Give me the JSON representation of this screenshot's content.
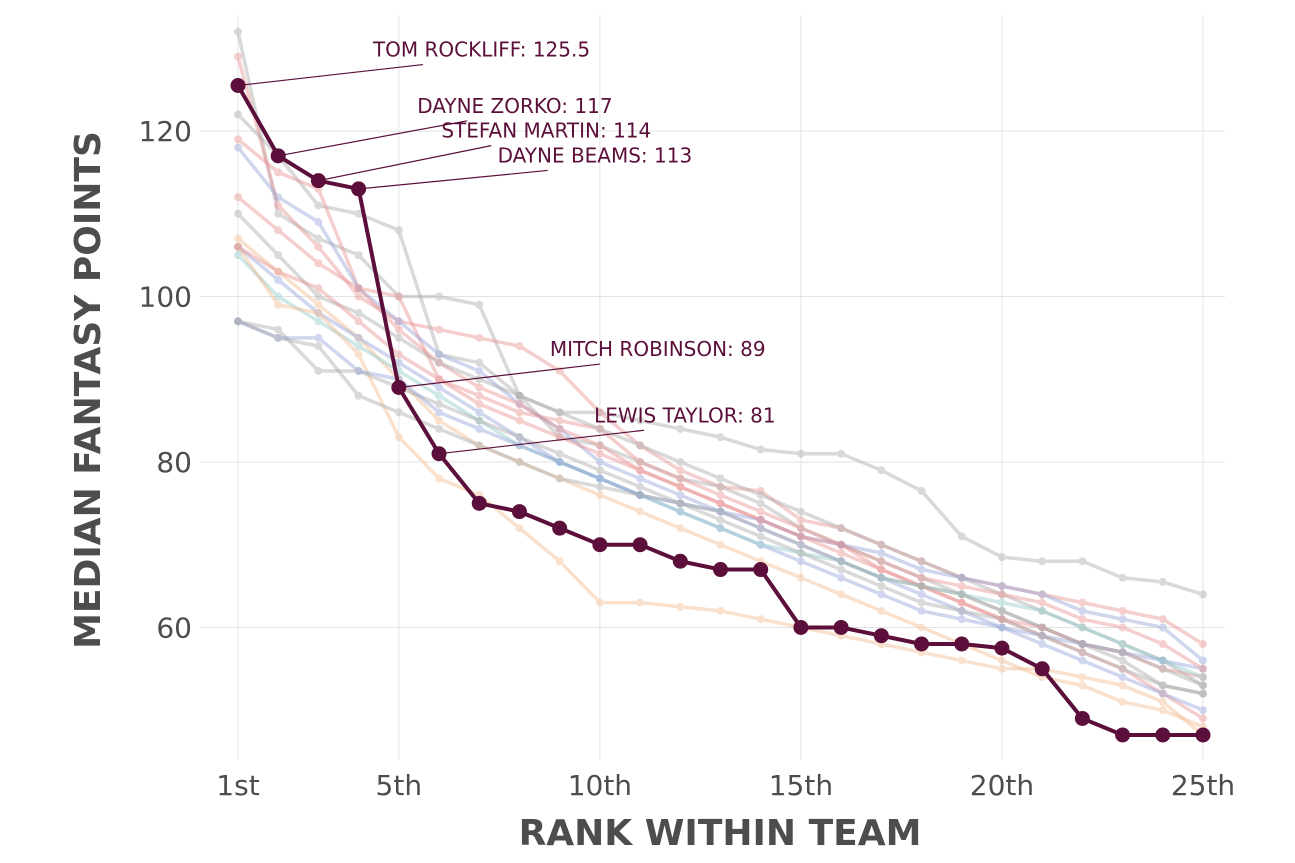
{
  "chart_data": {
    "type": "line",
    "xlabel": "RANK WITHIN TEAM",
    "ylabel": "MEDIAN FANTASY POINTS",
    "xlim": [
      1,
      25
    ],
    "ylim": [
      47,
      131
    ],
    "x_ticks": [
      1,
      5,
      10,
      15,
      20,
      25
    ],
    "x_tick_labels": [
      "1st",
      "5th",
      "10th",
      "15th",
      "20th",
      "25th"
    ],
    "y_ticks": [
      60,
      80,
      100,
      120
    ],
    "y_tick_labels": [
      "60",
      "80",
      "100",
      "120"
    ],
    "grid": true,
    "legend": "none",
    "x": [
      1,
      2,
      3,
      4,
      5,
      6,
      7,
      8,
      9,
      10,
      11,
      12,
      13,
      14,
      15,
      16,
      17,
      18,
      19,
      20,
      21,
      22,
      23,
      24,
      25
    ],
    "highlight": {
      "color": "#5b0f3a",
      "values": [
        125.5,
        117,
        114,
        113,
        89,
        81,
        75,
        74,
        72,
        70,
        70,
        68,
        67,
        67,
        60,
        60,
        59,
        58,
        58,
        57.5,
        55,
        49,
        47,
        47,
        47
      ]
    },
    "background_series": [
      {
        "color": "#a6a6a6",
        "values": [
          132,
          110,
          107,
          105,
          100,
          100,
          99,
          88,
          86,
          86,
          85,
          84,
          83,
          81.5,
          81,
          81,
          79,
          76.5,
          71,
          68.5,
          68,
          68,
          66,
          65.5,
          64
        ]
      },
      {
        "color": "#e88c8c",
        "values": [
          129,
          111,
          106,
          100,
          97,
          96,
          95,
          94,
          91,
          86,
          82,
          79,
          77,
          76.5,
          73,
          72,
          70,
          68,
          66,
          65,
          64,
          63,
          62,
          61,
          58
        ]
      },
      {
        "color": "#a6a6a6",
        "values": [
          122,
          117,
          111,
          110,
          108,
          93,
          92,
          88,
          83,
          82,
          80,
          78,
          77,
          75,
          72,
          70,
          68,
          66,
          64,
          62,
          60,
          58,
          56,
          53,
          52
        ]
      },
      {
        "color": "#e88c8c",
        "values": [
          119,
          115,
          113,
          101,
          100,
          90,
          88,
          86,
          85,
          84,
          80,
          78,
          76,
          74,
          72,
          70,
          67,
          65,
          63,
          61,
          59,
          57,
          55,
          52,
          49
        ]
      },
      {
        "color": "#8fa0d8",
        "values": [
          118,
          112,
          109,
          101,
          97,
          93,
          91,
          87,
          84,
          80,
          78,
          76,
          74,
          72,
          70,
          68,
          66,
          64,
          62,
          60,
          58,
          56,
          54,
          52,
          50
        ]
      },
      {
        "color": "#e88c8c",
        "values": [
          112,
          108,
          104,
          101,
          96,
          92,
          89,
          87,
          84,
          82,
          79,
          77,
          75,
          73,
          71,
          69,
          67,
          65,
          63,
          61,
          60,
          58,
          57,
          55,
          54
        ]
      },
      {
        "color": "#a6a6a6",
        "values": [
          110,
          105,
          100,
          98,
          95,
          92,
          90,
          88,
          86,
          84,
          82,
          80,
          78,
          76,
          74,
          72,
          70,
          68,
          66,
          64,
          62,
          60,
          58,
          56,
          53
        ]
      },
      {
        "color": "#f2b98c",
        "values": [
          107,
          103,
          99,
          95,
          90,
          85,
          82,
          80,
          78,
          76,
          74,
          72,
          70,
          68,
          66,
          64,
          62,
          60,
          58,
          56,
          54,
          53,
          51,
          50,
          48
        ]
      },
      {
        "color": "#8fa0d8",
        "values": [
          106,
          102,
          98,
          95,
          92,
          89,
          86,
          83,
          80,
          78,
          76,
          74,
          72,
          70,
          68,
          66,
          64,
          62,
          61,
          60,
          59,
          58,
          57,
          56,
          55
        ]
      },
      {
        "color": "#8cc8c8",
        "values": [
          105,
          100,
          97,
          94,
          91,
          88,
          85,
          82,
          80,
          78,
          76,
          74,
          72,
          70,
          69,
          68,
          66,
          65,
          64,
          63,
          62,
          60,
          58,
          56,
          54
        ]
      },
      {
        "color": "#f2b98c",
        "values": [
          106,
          99,
          98,
          93,
          83,
          78,
          76,
          72,
          68,
          63,
          63,
          62.5,
          62,
          61,
          60,
          59,
          58,
          57,
          56,
          55,
          55,
          54,
          53,
          51,
          47
        ]
      },
      {
        "color": "#a6a6a6",
        "values": [
          97,
          96,
          91,
          91,
          89,
          87,
          85,
          83,
          81,
          79,
          77,
          75,
          73,
          71,
          69,
          67,
          65,
          63,
          62,
          61,
          59,
          57,
          55,
          53,
          52
        ]
      },
      {
        "color": "#8fa0d8",
        "values": [
          97,
          95,
          95,
          91,
          90,
          86,
          84,
          82,
          80,
          78,
          76,
          75,
          74,
          73,
          71,
          70,
          69,
          67,
          66,
          65,
          64,
          62,
          61,
          60,
          56
        ]
      },
      {
        "color": "#e88c8c",
        "values": [
          106,
          103,
          101,
          97,
          93,
          90,
          87,
          85,
          83,
          81,
          79,
          77,
          75,
          73,
          71,
          70,
          68,
          66,
          65,
          64,
          63,
          61,
          60,
          58,
          55
        ]
      },
      {
        "color": "#a6a6a6",
        "values": [
          97,
          95,
          94,
          88,
          86,
          84,
          82,
          80,
          78,
          77,
          76,
          75,
          74,
          72,
          70,
          68,
          66,
          65,
          64,
          62,
          60,
          58,
          57,
          55,
          53
        ]
      }
    ],
    "annotations": [
      {
        "label": "TOM ROCKLIFF: 125.5",
        "x": 1,
        "y": 125.5,
        "text_x": 5.6,
        "text_y": 129
      },
      {
        "label": "DAYNE ZORKO: 117",
        "x": 2,
        "y": 117,
        "text_x": 6.7,
        "text_y": 122.2
      },
      {
        "label": "STEFAN MARTIN: 114",
        "x": 3,
        "y": 114,
        "text_x": 7.3,
        "text_y": 119.2
      },
      {
        "label": "DAYNE BEAMS: 113",
        "x": 4,
        "y": 113,
        "text_x": 8.7,
        "text_y": 116.2
      },
      {
        "label": "MITCH ROBINSON: 89",
        "x": 5,
        "y": 89,
        "text_x": 10.0,
        "text_y": 92.8
      },
      {
        "label": "LEWIS TAYLOR: 81",
        "x": 6,
        "y": 81,
        "text_x": 11.1,
        "text_y": 84.8
      }
    ]
  }
}
